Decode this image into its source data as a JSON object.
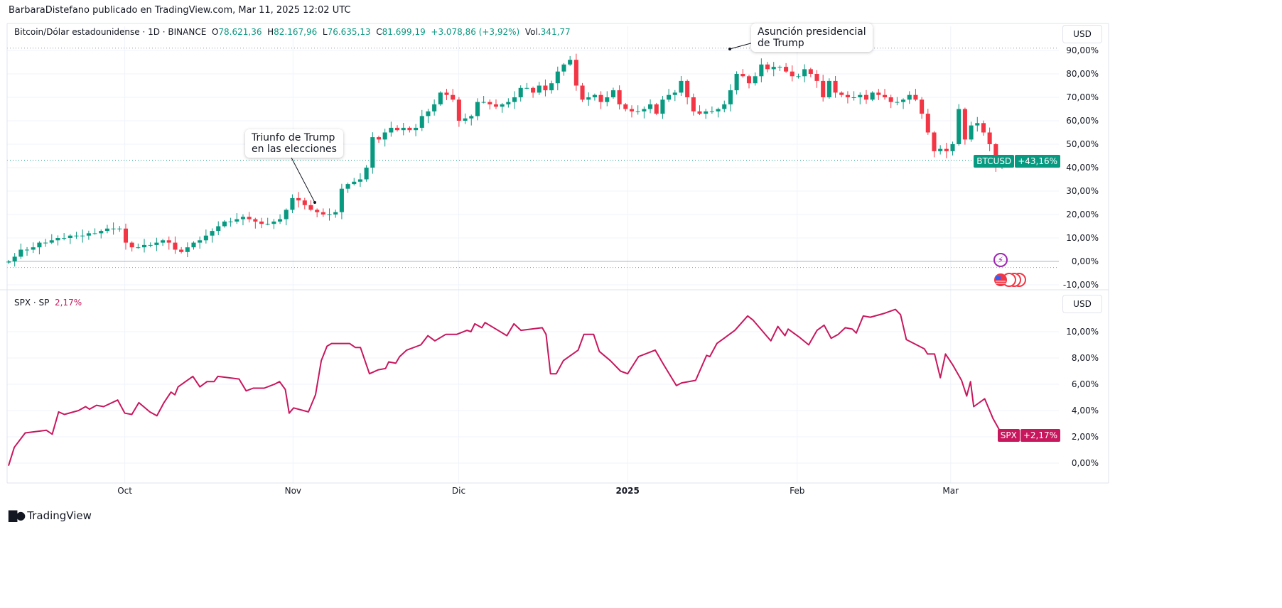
{
  "header": {
    "publisher": "BarbaraDistefano publicado en TradingView.com, Mar 11, 2025 12:02 UTC"
  },
  "legend_main": {
    "symbol": "Bitcoin/Dólar estadounidense · 1D · BINANCE",
    "o_label": "O",
    "o_value": "78.621,36",
    "h_label": "H",
    "h_value": "82.167,96",
    "l_label": "L",
    "l_value": "76.635,13",
    "c_label": "C",
    "c_value": "81.699,19",
    "change": "+3.078,86 (+3,92%)",
    "vol_label": "Vol.",
    "vol_value": "341,77"
  },
  "legend_sub": {
    "symbol": "SPX · SP",
    "value": "2,17%"
  },
  "currency_main": "USD",
  "currency_sub": "USD",
  "tags": {
    "btc_name": "BTCUSD",
    "btc_value": "+43,16%",
    "spx_name": "SPX",
    "spx_value": "+2,17%"
  },
  "annotations": {
    "election_line1": "Triunfo de Trump",
    "election_line2": "en las elecciones",
    "inauguration_line1": "Asunción presidencial",
    "inauguration_line2": "de Trump"
  },
  "footer": {
    "brand": "TradingView"
  },
  "icons": [
    "lightning-icon",
    "us-flag-event-icon"
  ],
  "colors": {
    "up": "#089981",
    "down": "#f23645",
    "spx": "#c8175d",
    "grid": "#f0f3fa"
  },
  "chart_data": [
    {
      "type": "candlestick",
      "title": "Bitcoin/Dólar estadounidense · 1D · BINANCE",
      "ylabel": "% change",
      "ylim": [
        -12,
        93
      ],
      "last_value": 43.16,
      "yticks": [
        {
          "v": 90,
          "label": "90,00%"
        },
        {
          "v": 80,
          "label": "80,00%"
        },
        {
          "v": 70,
          "label": "70,00%"
        },
        {
          "v": 60,
          "label": "60,00%"
        },
        {
          "v": 50,
          "label": "50,00%"
        },
        {
          "v": 40,
          "label": "40,00%"
        },
        {
          "v": 30,
          "label": "30,00%"
        },
        {
          "v": 20,
          "label": "20,00%"
        },
        {
          "v": 10,
          "label": "10,00%"
        },
        {
          "v": 0,
          "label": "0,00%"
        },
        {
          "v": -10,
          "label": "-10,00%"
        }
      ],
      "closes": [
        0,
        2,
        5,
        5,
        6,
        8,
        8,
        9,
        10,
        10,
        11,
        11,
        11,
        12,
        12,
        13,
        14,
        14,
        14,
        8,
        6,
        6,
        7,
        7,
        8,
        9,
        8,
        5,
        4,
        6,
        8,
        9,
        11,
        13,
        15,
        17,
        17,
        18,
        19,
        18,
        17,
        16,
        16,
        17,
        18,
        22,
        27,
        26,
        24,
        22,
        21,
        20,
        20,
        21,
        31,
        33,
        34,
        35,
        40,
        53,
        52,
        55,
        57,
        56,
        57,
        56,
        57,
        62,
        64,
        67,
        72,
        71,
        69,
        60,
        61,
        62,
        68,
        68,
        67,
        66,
        67,
        68,
        70,
        74,
        74,
        72,
        75,
        73,
        76,
        81,
        84,
        86,
        75,
        69,
        70,
        71,
        68,
        70,
        73,
        67,
        65,
        64,
        64,
        65,
        67,
        63,
        69,
        71,
        72,
        77,
        70,
        64,
        63,
        64,
        64,
        65,
        67,
        73,
        80,
        79,
        76,
        79,
        84,
        82,
        83,
        83,
        81,
        79,
        79,
        82,
        80,
        77,
        70,
        77,
        72,
        71,
        70,
        70,
        71,
        69,
        72,
        71,
        70,
        68,
        68,
        69,
        71,
        69,
        63,
        55,
        47,
        48,
        47,
        50,
        65,
        52,
        58,
        59,
        55,
        50,
        40,
        43.16
      ]
    },
    {
      "type": "line",
      "title": "SPX · SP",
      "ylabel": "% change",
      "ylim": [
        -0.5,
        12.2
      ],
      "last_value": 2.17,
      "yticks": [
        {
          "v": 10,
          "label": "10,00%"
        },
        {
          "v": 8,
          "label": "8,00%"
        },
        {
          "v": 6,
          "label": "6,00%"
        },
        {
          "v": 4,
          "label": "4,00%"
        },
        {
          "v": 2,
          "label": "2,00%"
        },
        {
          "v": 0,
          "label": "0,00%"
        }
      ],
      "points": [
        [
          0,
          -0.2
        ],
        [
          0.9,
          1.2
        ],
        [
          2.6,
          2.3
        ],
        [
          5.9,
          2.5
        ],
        [
          6.8,
          2.2
        ],
        [
          7.8,
          3.9
        ],
        [
          8.7,
          3.7
        ],
        [
          10.9,
          4.0
        ],
        [
          12,
          4.3
        ],
        [
          12.6,
          4.1
        ],
        [
          13.7,
          4.4
        ],
        [
          14.8,
          4.3
        ],
        [
          17,
          4.8
        ],
        [
          18.1,
          3.8
        ],
        [
          19.2,
          3.7
        ],
        [
          20.3,
          4.6
        ],
        [
          22,
          3.9
        ],
        [
          23.1,
          3.6
        ],
        [
          24.2,
          4.6
        ],
        [
          25.3,
          5.4
        ],
        [
          25.9,
          5.2
        ],
        [
          26.4,
          5.8
        ],
        [
          28.7,
          6.6
        ],
        [
          29.8,
          5.8
        ],
        [
          30.9,
          6.2
        ],
        [
          32,
          6.2
        ],
        [
          32.6,
          6.6
        ],
        [
          35.9,
          6.4
        ],
        [
          37,
          5.5
        ],
        [
          38.1,
          5.7
        ],
        [
          39.8,
          5.7
        ],
        [
          41.4,
          6.0
        ],
        [
          42.2,
          6.2
        ],
        [
          43.1,
          5.6
        ],
        [
          43.7,
          3.8
        ],
        [
          44.4,
          4.2
        ],
        [
          46.7,
          3.9
        ],
        [
          47.8,
          5.2
        ],
        [
          48.7,
          7.8
        ],
        [
          49.6,
          8.9
        ],
        [
          50.3,
          9.1
        ],
        [
          53.1,
          9.1
        ],
        [
          54,
          8.8
        ],
        [
          54.8,
          8.8
        ],
        [
          56.2,
          6.8
        ],
        [
          57.6,
          7.1
        ],
        [
          58.7,
          7.2
        ],
        [
          59.2,
          7.7
        ],
        [
          60.3,
          7.6
        ],
        [
          60.9,
          8.1
        ],
        [
          62,
          8.6
        ],
        [
          64.2,
          9.0
        ],
        [
          65.3,
          9.7
        ],
        [
          66.4,
          9.3
        ],
        [
          68.1,
          9.8
        ],
        [
          69.8,
          9.8
        ],
        [
          71.4,
          10.1
        ],
        [
          72,
          10.0
        ],
        [
          72.6,
          10.6
        ],
        [
          73.7,
          10.3
        ],
        [
          74.2,
          10.7
        ],
        [
          75.9,
          10.2
        ],
        [
          77.6,
          9.7
        ],
        [
          78.7,
          10.6
        ],
        [
          79.8,
          10.1
        ],
        [
          83.1,
          10.3
        ],
        [
          83.7,
          9.8
        ],
        [
          84.4,
          6.8
        ],
        [
          85.3,
          6.8
        ],
        [
          86.4,
          7.8
        ],
        [
          88.7,
          8.6
        ],
        [
          89.6,
          9.8
        ],
        [
          91.1,
          9.8
        ],
        [
          92,
          8.5
        ],
        [
          93.7,
          7.8
        ],
        [
          95.3,
          7.0
        ],
        [
          96.4,
          6.8
        ],
        [
          98.1,
          8.1
        ],
        [
          100.7,
          8.6
        ],
        [
          102,
          7.5
        ],
        [
          104,
          5.9
        ],
        [
          104.8,
          6.1
        ],
        [
          107,
          6.3
        ],
        [
          108.7,
          8.2
        ],
        [
          109.2,
          8.1
        ],
        [
          110.3,
          9.1
        ],
        [
          113.1,
          10.1
        ],
        [
          115.1,
          11.2
        ],
        [
          115.9,
          10.9
        ],
        [
          118.7,
          9.3
        ],
        [
          119.8,
          10.4
        ],
        [
          120.9,
          9.7
        ],
        [
          121.4,
          10.2
        ],
        [
          123.1,
          9.6
        ],
        [
          124.6,
          9.0
        ],
        [
          125.9,
          10.1
        ],
        [
          127,
          10.5
        ],
        [
          128.1,
          9.5
        ],
        [
          129.2,
          9.8
        ],
        [
          130.3,
          10.3
        ],
        [
          131.4,
          10.2
        ],
        [
          132,
          9.9
        ],
        [
          133.1,
          11.2
        ],
        [
          134.2,
          11.1
        ],
        [
          136.4,
          11.4
        ],
        [
          138.1,
          11.7
        ],
        [
          138.9,
          11.3
        ],
        [
          139.8,
          9.4
        ],
        [
          141.4,
          9.0
        ],
        [
          142.6,
          8.7
        ],
        [
          143.1,
          8.3
        ],
        [
          144.2,
          8.3
        ],
        [
          145.1,
          6.5
        ],
        [
          145.9,
          8.3
        ],
        [
          147,
          7.5
        ],
        [
          148.4,
          6.3
        ],
        [
          149.2,
          5.1
        ],
        [
          149.8,
          6.2
        ],
        [
          150.3,
          4.3
        ],
        [
          152,
          4.9
        ],
        [
          153.3,
          3.4
        ],
        [
          154.7,
          2.17
        ]
      ]
    },
    {
      "type": "time_axis",
      "xlim": [
        0,
        154.7
      ],
      "xticks": [
        {
          "v": 18.1,
          "label": "Oct",
          "bold": false
        },
        {
          "v": 44.3,
          "label": "Nov",
          "bold": false
        },
        {
          "v": 70.1,
          "label": "Dic",
          "bold": false
        },
        {
          "v": 96.4,
          "label": "2025",
          "bold": true
        },
        {
          "v": 122.8,
          "label": "Feb",
          "bold": false
        },
        {
          "v": 146.7,
          "label": "Mar",
          "bold": false
        }
      ]
    }
  ]
}
